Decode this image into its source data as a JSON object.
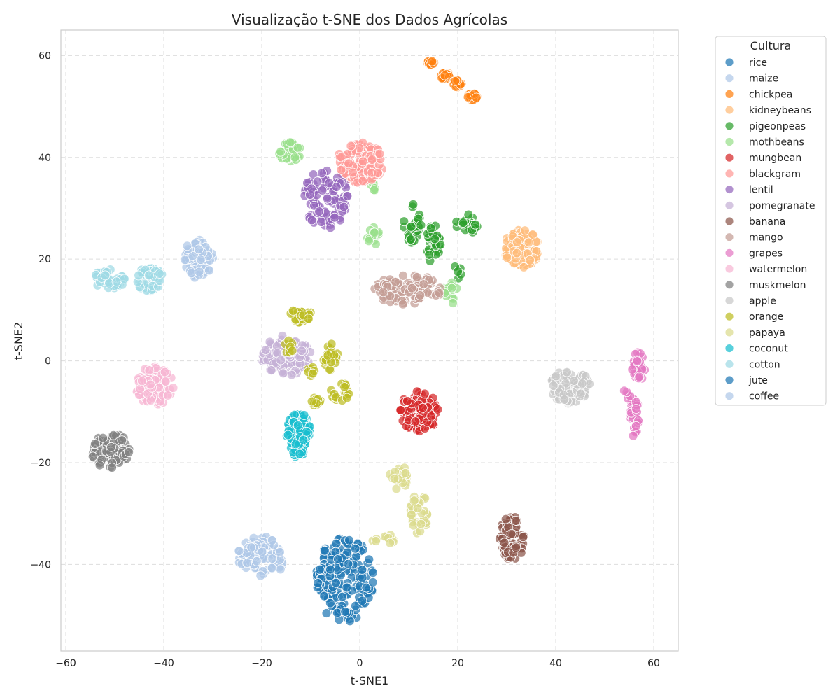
{
  "chart_data": {
    "type": "scatter",
    "title": "Visualização t-SNE dos Dados Agrícolas",
    "xlabel": "t-SNE1",
    "ylabel": "t-SNE2",
    "xlim": [
      -61,
      65
    ],
    "ylim": [
      -57,
      65
    ],
    "xticks": [
      -60,
      -40,
      -20,
      0,
      20,
      40,
      60
    ],
    "yticks": [
      -40,
      -20,
      0,
      20,
      40,
      60
    ],
    "xtick_labels": [
      "−60",
      "−40",
      "−20",
      "0",
      "20",
      "40",
      "60"
    ],
    "ytick_labels": [
      "−40",
      "−20",
      "0",
      "20",
      "40",
      "60"
    ],
    "grid": true,
    "legend": {
      "title": "Cultura",
      "placement": "outside-top-right"
    },
    "series": [
      {
        "name": "rice",
        "color": "#1f77b4",
        "clusters": []
      },
      {
        "name": "maize",
        "color": "#aec7e8",
        "clusters": [
          [
            -33,
            20,
            6,
            8,
            70
          ]
        ]
      },
      {
        "name": "chickpea",
        "color": "#ff7f0e",
        "clusters": [
          [
            14.5,
            58.5,
            1.5,
            1,
            15
          ],
          [
            17.5,
            56,
            2,
            1.5,
            25
          ],
          [
            20,
            54.5,
            2,
            1.5,
            20
          ],
          [
            23,
            52,
            2,
            1.5,
            25
          ]
        ]
      },
      {
        "name": "kidneybeans",
        "color": "#ffbb78",
        "clusters": [
          [
            33,
            22,
            7,
            8,
            90
          ]
        ]
      },
      {
        "name": "pigeonpeas",
        "color": "#2ca02c",
        "clusters": [
          [
            11,
            27,
            4,
            8,
            30
          ],
          [
            15,
            23,
            3,
            8,
            30
          ],
          [
            22,
            27,
            5,
            4,
            20
          ],
          [
            20,
            17.5,
            2,
            3,
            5
          ]
        ]
      },
      {
        "name": "mothbeans",
        "color": "#98df8a",
        "clusters": [
          [
            -14,
            41,
            5,
            4,
            35
          ],
          [
            3,
            34,
            2,
            2,
            6
          ],
          [
            3,
            24.5,
            3,
            4,
            15
          ],
          [
            18.5,
            13.5,
            4,
            5,
            12
          ],
          [
            -10.5,
            33.5,
            2,
            2,
            4
          ]
        ]
      },
      {
        "name": "mungbean",
        "color": "#d62728",
        "clusters": [
          [
            12,
            -10,
            8,
            8,
            100
          ]
        ]
      },
      {
        "name": "blackgram",
        "color": "#ff9896",
        "clusters": [
          [
            0,
            39,
            10,
            8,
            100
          ]
        ]
      },
      {
        "name": "lentil",
        "color": "#9467bd",
        "clusters": [
          [
            -7,
            32,
            9,
            12,
            100
          ]
        ]
      },
      {
        "name": "pomegranate",
        "color": "#c5b0d5",
        "clusters": [
          [
            -15,
            1,
            10,
            8,
            90
          ]
        ]
      },
      {
        "name": "banana",
        "color": "#8c564b",
        "clusters": [
          [
            31,
            -35,
            5,
            9,
            80
          ]
        ]
      },
      {
        "name": "mango",
        "color": "#c49c94",
        "clusters": [
          [
            10,
            14,
            14,
            6,
            90
          ]
        ]
      },
      {
        "name": "grapes",
        "color": "#e377c2",
        "clusters": [
          [
            57,
            -1,
            3,
            6,
            30
          ],
          [
            56,
            -11,
            2,
            8,
            30
          ],
          [
            54.5,
            -6.5,
            1.5,
            2,
            5
          ]
        ]
      },
      {
        "name": "watermelon",
        "color": "#f7b6d2",
        "clusters": [
          [
            -42,
            -5,
            8,
            8,
            90
          ]
        ]
      },
      {
        "name": "muskmelon",
        "color": "#7f7f7f",
        "clusters": [
          [
            -51,
            -17.5,
            8,
            7,
            90
          ]
        ]
      },
      {
        "name": "apple",
        "color": "#c7c7c7",
        "clusters": [
          [
            43,
            -5,
            8,
            7,
            80
          ]
        ]
      },
      {
        "name": "orange",
        "color": "#bcbd22",
        "clusters": [
          [
            -12,
            9,
            5,
            3,
            25
          ],
          [
            -6,
            1,
            3,
            6,
            20
          ],
          [
            -4,
            -6,
            4,
            4,
            20
          ],
          [
            -9,
            -8,
            2,
            1.5,
            10
          ],
          [
            -10,
            -2,
            2,
            2,
            8
          ],
          [
            -15,
            3,
            3,
            4,
            10
          ]
        ]
      },
      {
        "name": "papaya",
        "color": "#dbdb8d",
        "clusters": [
          [
            12,
            -30,
            4,
            8,
            35
          ],
          [
            8,
            -23,
            4,
            5,
            25
          ],
          [
            5,
            -35,
            5,
            2,
            10
          ]
        ]
      },
      {
        "name": "coconut",
        "color": "#17becf",
        "clusters": [
          [
            -12.5,
            -14.5,
            5,
            9,
            100
          ]
        ]
      },
      {
        "name": "cotton",
        "color": "#9edae5",
        "clusters": [
          [
            -51,
            16,
            7,
            4,
            45
          ],
          [
            -43,
            16,
            6,
            5,
            45
          ]
        ]
      },
      {
        "name": "jute",
        "color": "#1f77b4",
        "clusters": [
          [
            -3,
            -43,
            12,
            17,
            170
          ]
        ]
      },
      {
        "name": "coffee",
        "color": "#aec7e8",
        "clusters": [
          [
            -20,
            -38.5,
            10,
            8,
            90
          ]
        ]
      }
    ]
  }
}
